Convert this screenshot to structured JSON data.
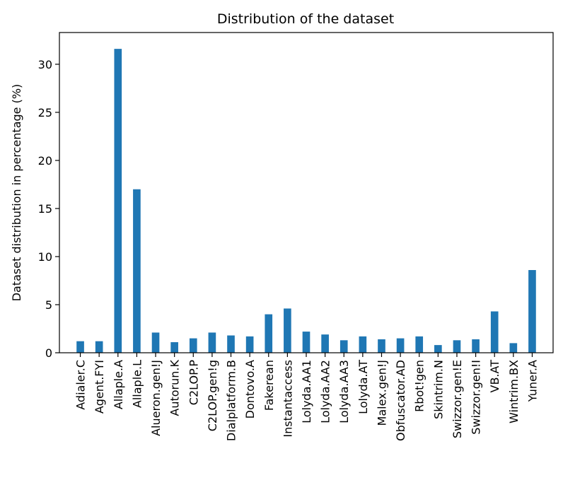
{
  "chart_data": {
    "type": "bar",
    "title": "Distribution of the dataset",
    "xlabel": "",
    "ylabel": "Dataset distribution in percentage (%)",
    "ylim": [
      0,
      33.3
    ],
    "yticks": [
      0,
      5,
      10,
      15,
      20,
      25,
      30
    ],
    "grid": false,
    "legend": "none",
    "bar_color": "#1f77b4",
    "categories": [
      "Adialer.C",
      "Agent.FYI",
      "Allaple.A",
      "Allaple.L",
      "Alueron.gen!J",
      "Autorun.K",
      "C2LOP.P",
      "C2LOP.gen!g",
      "Dialplatform.B",
      "Dontovo.A",
      "Fakerean",
      "Instantaccess",
      "Lolyda.AA1",
      "Lolyda.AA2",
      "Lolyda.AA3",
      "Lolyda.AT",
      "Malex.gen!J",
      "Obfuscator.AD",
      "Rbot!gen",
      "Skintrim.N",
      "Swizzor.gen!E",
      "Swizzor.gen!I",
      "VB.AT",
      "Wintrim.BX",
      "Yuner.A"
    ],
    "values": [
      1.2,
      1.2,
      31.6,
      17.0,
      2.1,
      1.1,
      1.5,
      2.1,
      1.8,
      1.7,
      4.0,
      4.6,
      2.2,
      1.9,
      1.3,
      1.7,
      1.4,
      1.5,
      1.7,
      0.8,
      1.3,
      1.4,
      4.3,
      1.0,
      8.6
    ]
  }
}
